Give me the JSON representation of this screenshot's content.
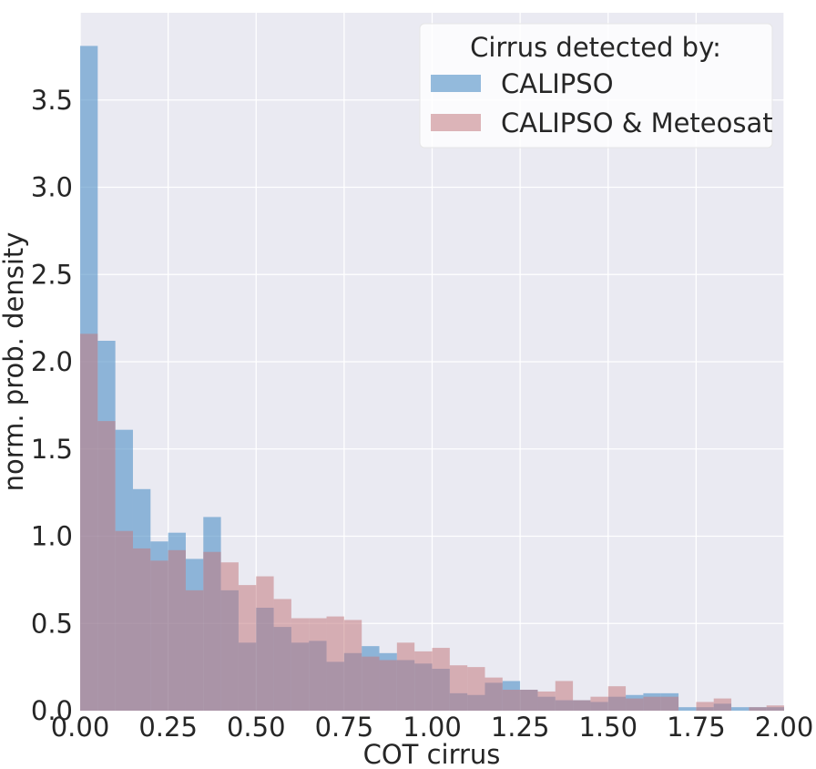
{
  "chart_data": {
    "type": "bar",
    "subtype": "histogram",
    "title": "",
    "xlabel": "COT cirrus",
    "ylabel": "norm. prob. density",
    "xlim": [
      0.0,
      2.0
    ],
    "ylim": [
      0.0,
      4.0
    ],
    "x_ticks": [
      "0.00",
      "0.25",
      "0.50",
      "0.75",
      "1.00",
      "1.25",
      "1.50",
      "1.75",
      "2.00"
    ],
    "x_tick_values": [
      0.0,
      0.25,
      0.5,
      0.75,
      1.0,
      1.25,
      1.5,
      1.75,
      2.0
    ],
    "y_ticks": [
      "0.0",
      "0.5",
      "1.0",
      "1.5",
      "2.0",
      "2.5",
      "3.0",
      "3.5"
    ],
    "y_tick_values": [
      0.0,
      0.5,
      1.0,
      1.5,
      2.0,
      2.5,
      3.0,
      3.5
    ],
    "grid": true,
    "background_color": "#eaeaf2",
    "grid_color": "#ffffff",
    "legend": {
      "title": "Cirrus detected by:",
      "placement": "top-right"
    },
    "bin_width": 0.05,
    "bin_starts": [
      0.0,
      0.05,
      0.1,
      0.15,
      0.2,
      0.25,
      0.3,
      0.35,
      0.4,
      0.45,
      0.5,
      0.55,
      0.6,
      0.65,
      0.7,
      0.75,
      0.8,
      0.85,
      0.9,
      0.95,
      1.0,
      1.05,
      1.1,
      1.15,
      1.2,
      1.25,
      1.3,
      1.35,
      1.4,
      1.45,
      1.5,
      1.55,
      1.6,
      1.65,
      1.7,
      1.75,
      1.8,
      1.85,
      1.9,
      1.95
    ],
    "series": [
      {
        "name": "CALIPSO",
        "color": "#4e8fc6",
        "opacity": 0.6,
        "values": [
          3.81,
          2.12,
          1.61,
          1.27,
          0.97,
          1.02,
          0.87,
          1.11,
          0.69,
          0.39,
          0.59,
          0.48,
          0.39,
          0.4,
          0.28,
          0.33,
          0.37,
          0.33,
          0.29,
          0.27,
          0.24,
          0.1,
          0.09,
          0.16,
          0.17,
          0.12,
          0.08,
          0.06,
          0.06,
          0.05,
          0.08,
          0.09,
          0.1,
          0.1,
          0.02,
          0.02,
          0.04,
          0.02,
          0.02,
          0.02
        ]
      },
      {
        "name": "CALIPSO & Meteosat",
        "color": "#c27a7f",
        "opacity": 0.55,
        "values": [
          2.16,
          1.66,
          1.03,
          0.93,
          0.86,
          0.92,
          0.69,
          0.91,
          0.85,
          0.72,
          0.77,
          0.64,
          0.53,
          0.53,
          0.54,
          0.52,
          0.31,
          0.29,
          0.39,
          0.34,
          0.36,
          0.26,
          0.25,
          0.19,
          0.12,
          0.12,
          0.11,
          0.17,
          0.06,
          0.08,
          0.14,
          0.07,
          0.08,
          0.08,
          0.0,
          0.05,
          0.07,
          0.0,
          0.02,
          0.03
        ]
      }
    ]
  }
}
